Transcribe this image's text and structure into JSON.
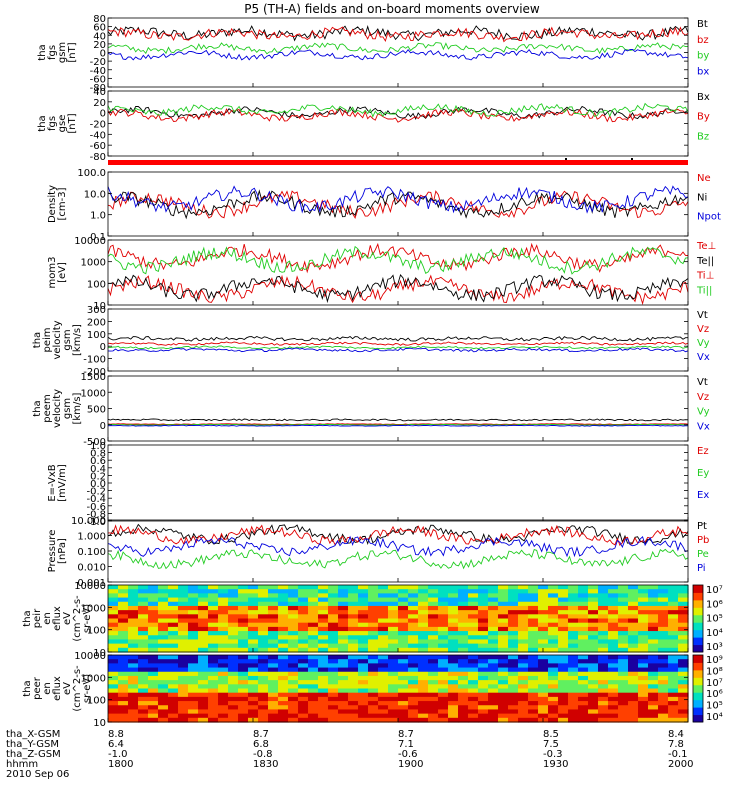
{
  "title": "P5 (TH-A) fields and on-board moments overview",
  "colors": {
    "black": "#000000",
    "red": "#e00000",
    "green": "#22cc22",
    "blue": "#0000dd"
  },
  "chart_data": {
    "type": "line",
    "x_time": {
      "start": "1800",
      "end": "2000",
      "tick_labels": [
        "1800",
        "1830",
        "1900",
        "1930",
        "2000"
      ],
      "rows": [
        {
          "label": "tha_X-GSM",
          "values": [
            "8.8",
            "8.7",
            "8.7",
            "8.5",
            "8.4"
          ]
        },
        {
          "label": "tha_Y-GSM",
          "values": [
            "6.4",
            "6.8",
            "7.1",
            "7.5",
            "7.8"
          ]
        },
        {
          "label": "tha_Z-GSM",
          "values": [
            "-1.0",
            "-0.8",
            "-0.6",
            "-0.3",
            "-0.1"
          ]
        },
        {
          "label": "hhmm",
          "values": [
            "1800",
            "1830",
            "1900",
            "1930",
            "2000"
          ]
        }
      ],
      "date": "2010 Sep 06"
    },
    "panels": [
      {
        "id": "fgs_gsm",
        "ylabel": [
          "tha",
          "fgs",
          "gsm",
          "[nT]"
        ],
        "scale": "linear",
        "yticks": [
          "80",
          "60",
          "40",
          "20",
          "0",
          "-20",
          "-40",
          "-60",
          "-80"
        ],
        "legend": [
          {
            "name": "Bt",
            "color": "#000000"
          },
          {
            "name": "bz",
            "color": "#e00000"
          },
          {
            "name": "by",
            "color": "#22cc22"
          },
          {
            "name": "bx",
            "color": "#0000dd"
          }
        ],
        "series_levels": {
          "Bt": 45,
          "bz": 42,
          "by": 10,
          "bx": -5
        }
      },
      {
        "id": "fgs_gse",
        "ylabel": [
          "tha",
          "fgs",
          "gse",
          "[nT]"
        ],
        "scale": "linear",
        "yticks": [
          "40",
          "20",
          "0",
          "-20",
          "-40",
          "-60",
          "-80"
        ],
        "legend": [
          {
            "name": "Bx",
            "color": "#000000"
          },
          {
            "name": "By",
            "color": "#e00000"
          },
          {
            "name": "Bz",
            "color": "#22cc22"
          }
        ],
        "series_levels": {
          "Bx": 0,
          "By": -5,
          "Bz": 5
        }
      },
      {
        "id": "density",
        "ylabel": [
          "Density",
          "[cm-3]"
        ],
        "scale": "log",
        "yticks": [
          "100.0",
          "10.0",
          "1.0",
          "0.1"
        ],
        "legend": [
          {
            "name": "Ne",
            "color": "#e00000"
          },
          {
            "name": "Ni",
            "color": "#000000"
          },
          {
            "name": "Npot",
            "color": "#0000dd"
          }
        ],
        "series_levels": {
          "Ne": 3,
          "Ni": 3,
          "Npot": 5
        }
      },
      {
        "id": "temperature",
        "ylabel": [
          "mom3",
          "[eV]"
        ],
        "scale": "log",
        "yticks": [
          "10000",
          "1000",
          "100",
          "10"
        ],
        "legend": [
          {
            "name": "Te⊥",
            "color": "#e00000"
          },
          {
            "name": "Te||",
            "color": "#000000"
          },
          {
            "name": "Ti⊥",
            "color": "#e00000"
          },
          {
            "name": "Ti||",
            "color": "#22cc22"
          }
        ],
        "series_levels": {
          "Te⊥": 50,
          "Te||": 60,
          "Ti⊥": 1500,
          "Ti||": 1200
        }
      },
      {
        "id": "peim_velocity",
        "ylabel": [
          "tha",
          "peim",
          "velocity",
          "gsm",
          "[km/s]"
        ],
        "scale": "linear",
        "yticks": [
          "300",
          "200",
          "100",
          "0",
          "-100",
          "-200"
        ],
        "legend": [
          {
            "name": "Vt",
            "color": "#000000"
          },
          {
            "name": "Vz",
            "color": "#e00000"
          },
          {
            "name": "Vy",
            "color": "#22cc22"
          },
          {
            "name": "Vx",
            "color": "#0000dd"
          }
        ],
        "series_levels": {
          "Vt": 60,
          "Vz": 20,
          "Vy": -10,
          "Vx": -30
        }
      },
      {
        "id": "peem_velocity",
        "ylabel": [
          "tha",
          "peem",
          "velocity",
          "gsm",
          "[km/s]"
        ],
        "scale": "linear",
        "yticks": [
          "1500",
          "1000",
          "500",
          "0",
          "-500"
        ],
        "legend": [
          {
            "name": "Vt",
            "color": "#000000"
          },
          {
            "name": "Vz",
            "color": "#e00000"
          },
          {
            "name": "Vy",
            "color": "#22cc22"
          },
          {
            "name": "Vx",
            "color": "#0000dd"
          }
        ],
        "series_levels": {
          "Vt": 150,
          "Vz": 20,
          "Vy": 0,
          "Vx": -30
        }
      },
      {
        "id": "efield",
        "ylabel": [
          "E=-VxB",
          "[mV/m]"
        ],
        "scale": "linear",
        "yticks": [
          "1.0",
          "0.8",
          "0.6",
          "0.4",
          "0.2",
          "0.0",
          "-0.2",
          "-0.4",
          "-0.6",
          "-0.8",
          "-1.0"
        ],
        "legend": [
          {
            "name": "Ez",
            "color": "#e00000"
          },
          {
            "name": "Ey",
            "color": "#22cc22"
          },
          {
            "name": "Ex",
            "color": "#0000dd"
          }
        ]
      },
      {
        "id": "pressure",
        "ylabel": [
          "Pressure",
          "[nPa]"
        ],
        "scale": "log",
        "yticks": [
          "10.000",
          "1.000",
          "0.100",
          "0.010",
          "0.001"
        ],
        "legend": [
          {
            "name": "Pt",
            "color": "#000000"
          },
          {
            "name": "Pb",
            "color": "#e00000"
          },
          {
            "name": "Pe",
            "color": "#22cc22"
          },
          {
            "name": "Pi",
            "color": "#0000dd"
          }
        ],
        "series_levels": {
          "Pt": 1.2,
          "Pb": 1.0,
          "Pe": 0.03,
          "Pi": 0.2
        }
      },
      {
        "id": "peir_spec",
        "type": "heatmap",
        "ylabel": [
          "tha",
          "peir",
          "en",
          "eflux",
          "eV",
          "(cm^2-s-",
          "sr-eV)"
        ],
        "scale": "log",
        "yticks": [
          "10000",
          "1000",
          "100",
          "10"
        ],
        "colorbar_ticks": [
          "10⁷",
          "10⁶",
          "10⁵",
          "10⁴",
          "10³"
        ]
      },
      {
        "id": "peer_spec",
        "type": "heatmap",
        "ylabel": [
          "tha",
          "peer",
          "en",
          "eflux",
          "eV",
          "(cm^2-s-",
          "sr-eV)"
        ],
        "scale": "log",
        "yticks": [
          "10000",
          "1000",
          "100",
          "10"
        ],
        "colorbar_ticks": [
          "10⁹",
          "10⁸",
          "10⁷",
          "10⁶",
          "10⁵",
          "10⁴"
        ]
      }
    ]
  }
}
